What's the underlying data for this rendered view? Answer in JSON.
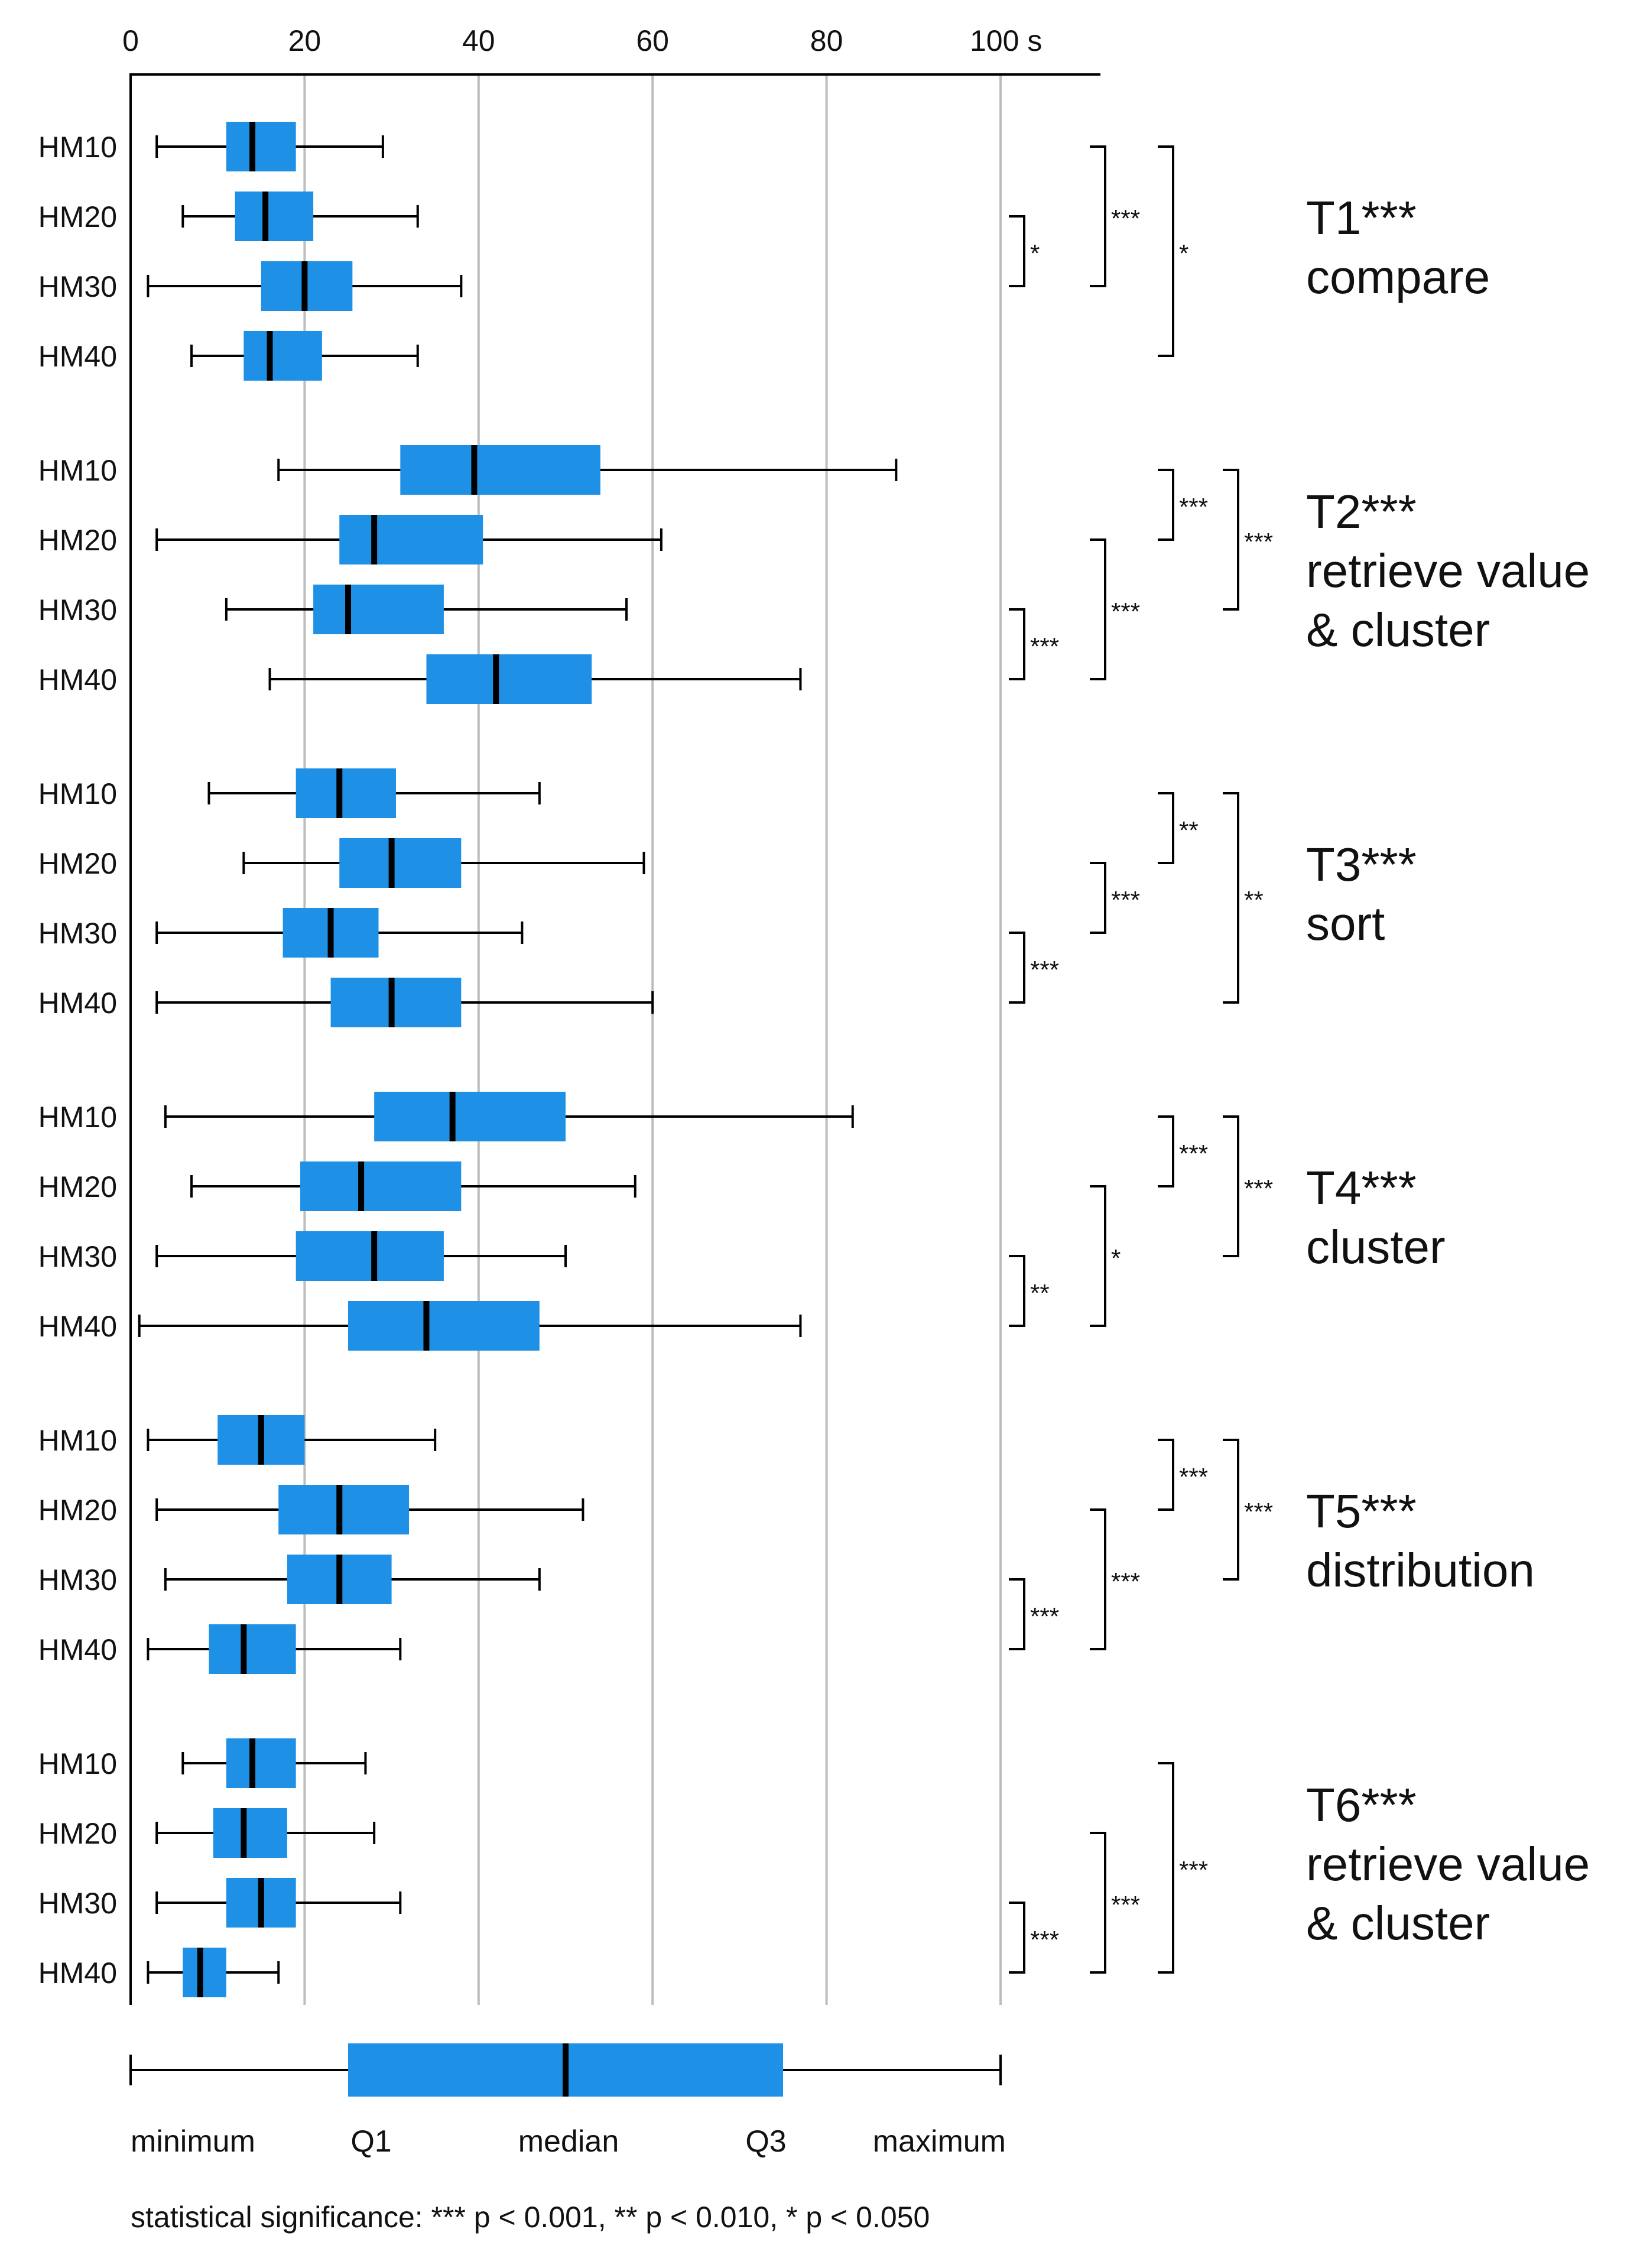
{
  "chart_data": {
    "type": "boxplot",
    "orientation": "horizontal",
    "x_ticks": [
      "0",
      "20",
      "40",
      "60",
      "80",
      "100 s"
    ],
    "xlim": [
      0,
      100
    ],
    "grid": true,
    "colors": {
      "box": "#1e90e6",
      "median": "#000000",
      "whisker": "#000000",
      "grid": "#bdbdbd"
    },
    "groups": [
      {
        "task": "T1***",
        "desc": [
          "compare"
        ],
        "rows": [
          {
            "label": "HM10",
            "min": 3,
            "q1": 11,
            "median": 14,
            "q3": 19,
            "max": 29
          },
          {
            "label": "HM20",
            "min": 6,
            "q1": 12,
            "median": 15.5,
            "q3": 21,
            "max": 33
          },
          {
            "label": "HM30",
            "min": 2,
            "q1": 15,
            "median": 20,
            "q3": 25.5,
            "max": 38
          },
          {
            "label": "HM40",
            "min": 7,
            "q1": 13,
            "median": 16,
            "q3": 22,
            "max": 33
          }
        ],
        "brackets": [
          {
            "from": 1,
            "to": 2,
            "col": 0,
            "stars": "*"
          },
          {
            "from": 0,
            "to": 2,
            "col": 1,
            "stars": "***"
          },
          {
            "from": 0,
            "to": 3,
            "col": 2,
            "stars": "*"
          }
        ]
      },
      {
        "task": "T2***",
        "desc": [
          "retrieve value",
          "& cluster"
        ],
        "rows": [
          {
            "label": "HM10",
            "min": 17,
            "q1": 31,
            "median": 39.5,
            "q3": 54,
            "max": 88
          },
          {
            "label": "HM20",
            "min": 3,
            "q1": 24,
            "median": 28,
            "q3": 40.5,
            "max": 61
          },
          {
            "label": "HM30",
            "min": 11,
            "q1": 21,
            "median": 25,
            "q3": 36,
            "max": 57
          },
          {
            "label": "HM40",
            "min": 16,
            "q1": 34,
            "median": 42,
            "q3": 53,
            "max": 77
          }
        ],
        "brackets": [
          {
            "from": 2,
            "to": 3,
            "col": 0,
            "stars": "***"
          },
          {
            "from": 1,
            "to": 3,
            "col": 1,
            "stars": "***"
          },
          {
            "from": 0,
            "to": 1,
            "col": 2,
            "stars": "***"
          },
          {
            "from": 0,
            "to": 2,
            "col": 3,
            "stars": "***"
          }
        ]
      },
      {
        "task": "T3***",
        "desc": [
          "sort"
        ],
        "rows": [
          {
            "label": "HM10",
            "min": 9,
            "q1": 19,
            "median": 24,
            "q3": 30.5,
            "max": 47
          },
          {
            "label": "HM20",
            "min": 13,
            "q1": 24,
            "median": 30,
            "q3": 38,
            "max": 59
          },
          {
            "label": "HM30",
            "min": 3,
            "q1": 17.5,
            "median": 23,
            "q3": 28.5,
            "max": 45
          },
          {
            "label": "HM40",
            "min": 3,
            "q1": 23,
            "median": 30,
            "q3": 38,
            "max": 60
          }
        ],
        "brackets": [
          {
            "from": 2,
            "to": 3,
            "col": 0,
            "stars": "***"
          },
          {
            "from": 1,
            "to": 2,
            "col": 1,
            "stars": "***"
          },
          {
            "from": 0,
            "to": 1,
            "col": 2,
            "stars": "**"
          },
          {
            "from": 0,
            "to": 3,
            "col": 3,
            "stars": "**"
          }
        ]
      },
      {
        "task": "T4***",
        "desc": [
          "cluster"
        ],
        "rows": [
          {
            "label": "HM10",
            "min": 4,
            "q1": 28,
            "median": 37,
            "q3": 50,
            "max": 83
          },
          {
            "label": "HM20",
            "min": 7,
            "q1": 19.5,
            "median": 26.5,
            "q3": 38,
            "max": 58
          },
          {
            "label": "HM30",
            "min": 3,
            "q1": 19,
            "median": 28,
            "q3": 36,
            "max": 50
          },
          {
            "label": "HM40",
            "min": 1,
            "q1": 25,
            "median": 34,
            "q3": 47,
            "max": 77
          }
        ],
        "brackets": [
          {
            "from": 2,
            "to": 3,
            "col": 0,
            "stars": "**"
          },
          {
            "from": 1,
            "to": 3,
            "col": 1,
            "stars": "*"
          },
          {
            "from": 0,
            "to": 1,
            "col": 2,
            "stars": "***"
          },
          {
            "from": 0,
            "to": 2,
            "col": 3,
            "stars": "***"
          }
        ]
      },
      {
        "task": "T5***",
        "desc": [
          "distribution"
        ],
        "rows": [
          {
            "label": "HM10",
            "min": 2,
            "q1": 10,
            "median": 15,
            "q3": 20,
            "max": 35
          },
          {
            "label": "HM20",
            "min": 3,
            "q1": 17,
            "median": 24,
            "q3": 32,
            "max": 52
          },
          {
            "label": "HM30",
            "min": 4,
            "q1": 18,
            "median": 24,
            "q3": 30,
            "max": 47
          },
          {
            "label": "HM40",
            "min": 2,
            "q1": 9,
            "median": 13,
            "q3": 19,
            "max": 31
          }
        ],
        "brackets": [
          {
            "from": 2,
            "to": 3,
            "col": 0,
            "stars": "***"
          },
          {
            "from": 1,
            "to": 3,
            "col": 1,
            "stars": "***"
          },
          {
            "from": 0,
            "to": 1,
            "col": 2,
            "stars": "***"
          },
          {
            "from": 0,
            "to": 2,
            "col": 3,
            "stars": "***"
          }
        ]
      },
      {
        "task": "T6***",
        "desc": [
          "retrieve value",
          "& cluster"
        ],
        "rows": [
          {
            "label": "HM10",
            "min": 6,
            "q1": 11,
            "median": 14,
            "q3": 19,
            "max": 27
          },
          {
            "label": "HM20",
            "min": 3,
            "q1": 9.5,
            "median": 13,
            "q3": 18,
            "max": 28
          },
          {
            "label": "HM30",
            "min": 3,
            "q1": 11,
            "median": 15,
            "q3": 19,
            "max": 31
          },
          {
            "label": "HM40",
            "min": 2,
            "q1": 6,
            "median": 8,
            "q3": 11,
            "max": 17
          }
        ],
        "brackets": [
          {
            "from": 2,
            "to": 3,
            "col": 0,
            "stars": "***"
          },
          {
            "from": 1,
            "to": 3,
            "col": 1,
            "stars": "***"
          },
          {
            "from": 0,
            "to": 3,
            "col": 2,
            "stars": "***"
          }
        ]
      }
    ],
    "legend": {
      "example": {
        "min": 0,
        "q1": 25,
        "median": 50,
        "q3": 75,
        "max": 100
      },
      "labels": [
        "minimum",
        "Q1",
        "median",
        "Q3",
        "maximum"
      ]
    },
    "footnote": "statistical significance: *** p < 0.001, ** p < 0.010, * p < 0.050"
  }
}
